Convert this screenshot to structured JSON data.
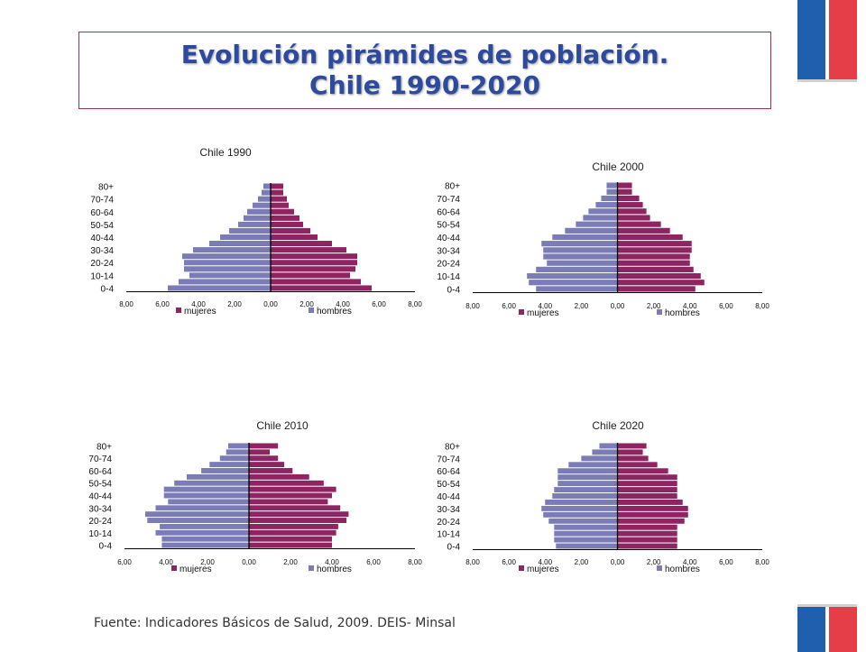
{
  "slide": {
    "title_line1": "Evolución pirámides de población.",
    "title_line2": "Chile 1990-2020",
    "source": "Fuente: Indicadores Básicos de Salud, 2009. DEIS- Minsal"
  },
  "colors": {
    "mujeres": "#7b7bb6",
    "hombres": "#8e2462",
    "title": "#2e4a9c",
    "frame": "#9b2f5b",
    "flag_blue": "#1f5fae",
    "flag_red": "#e63e48"
  },
  "chart_data": [
    {
      "type": "bar",
      "orientation": "horizontal-pyramid",
      "title": "Chile 1990",
      "categories": [
        "0-4",
        "5-9",
        "10-14",
        "15-19",
        "20-24",
        "25-29",
        "30-34",
        "35-39",
        "40-44",
        "45-49",
        "50-54",
        "55-59",
        "60-64",
        "65-69",
        "70-74",
        "75-79",
        "80+"
      ],
      "category_labels": [
        "0-4",
        "10-14",
        "20-24",
        "30-34",
        "40-44",
        "50-54",
        "60-64",
        "70-74",
        "80+"
      ],
      "xlim": [
        -8,
        8
      ],
      "x_ticks": [
        "8,00",
        "6,00",
        "4,00",
        "2,00",
        "0,00",
        "2,00",
        "4,00",
        "6,00",
        "8,00"
      ],
      "legend_position": "bottom",
      "series": [
        {
          "name": "mujeres",
          "values": [
            5.7,
            5.1,
            4.5,
            4.8,
            4.8,
            4.9,
            4.3,
            3.4,
            2.8,
            2.3,
            1.8,
            1.5,
            1.3,
            1.0,
            0.7,
            0.5,
            0.4
          ]
        },
        {
          "name": "hombres",
          "values": [
            5.6,
            5.0,
            4.4,
            4.7,
            4.8,
            4.8,
            4.2,
            3.4,
            2.6,
            2.2,
            1.8,
            1.6,
            1.3,
            1.0,
            0.9,
            0.7,
            0.7
          ]
        }
      ]
    },
    {
      "type": "bar",
      "orientation": "horizontal-pyramid",
      "title": "Chile 2000",
      "categories": [
        "0-4",
        "5-9",
        "10-14",
        "15-19",
        "20-24",
        "25-29",
        "30-34",
        "35-39",
        "40-44",
        "45-49",
        "50-54",
        "55-59",
        "60-64",
        "65-69",
        "70-74",
        "75-79",
        "80+"
      ],
      "category_labels": [
        "0-4",
        "10-14",
        "20-24",
        "30-34",
        "40-44",
        "50-54",
        "60-64",
        "70-74",
        "80+"
      ],
      "xlim": [
        -8,
        8
      ],
      "x_ticks": [
        "8,00",
        "6,00",
        "4,00",
        "2,00",
        "0,00",
        "2,00",
        "4,00",
        "6,00",
        "8,00"
      ],
      "legend_position": "bottom",
      "series": [
        {
          "name": "mujeres",
          "values": [
            4.5,
            4.9,
            5.0,
            4.5,
            3.9,
            4.1,
            4.1,
            4.2,
            3.6,
            2.9,
            2.3,
            1.9,
            1.6,
            1.2,
            0.9,
            0.6,
            0.6
          ]
        },
        {
          "name": "hombres",
          "values": [
            4.3,
            4.8,
            4.6,
            4.2,
            4.0,
            4.0,
            4.1,
            4.1,
            3.6,
            2.9,
            2.4,
            1.8,
            1.6,
            1.4,
            1.2,
            0.8,
            0.8
          ]
        }
      ]
    },
    {
      "type": "bar",
      "orientation": "horizontal-pyramid",
      "title": "Chile 2010",
      "categories": [
        "0-4",
        "5-9",
        "10-14",
        "15-19",
        "20-24",
        "25-29",
        "30-34",
        "35-39",
        "40-44",
        "45-49",
        "50-54",
        "55-59",
        "60-64",
        "65-69",
        "70-74",
        "75-79",
        "80+"
      ],
      "category_labels": [
        "0-4",
        "10-14",
        "20-24",
        "30-34",
        "40-44",
        "50-54",
        "60-64",
        "70-74",
        "80+"
      ],
      "xlim": [
        -6,
        8
      ],
      "x_ticks": [
        "6,00",
        "4,00",
        "2,00",
        "0,00",
        "2,00",
        "4,00",
        "6,00",
        "8,00"
      ],
      "legend_position": "bottom",
      "series": [
        {
          "name": "mujeres",
          "values": [
            4.2,
            4.2,
            4.5,
            4.3,
            4.9,
            5.0,
            4.5,
            3.9,
            4.1,
            4.1,
            3.6,
            3.0,
            2.3,
            1.9,
            1.4,
            1.1,
            1.0
          ]
        },
        {
          "name": "hombres",
          "values": [
            4.0,
            4.0,
            4.2,
            4.3,
            4.7,
            4.8,
            4.4,
            3.8,
            4.0,
            4.2,
            3.6,
            2.9,
            2.1,
            1.7,
            1.4,
            1.0,
            1.4
          ]
        }
      ]
    },
    {
      "type": "bar",
      "orientation": "horizontal-pyramid",
      "title": "Chile 2020",
      "categories": [
        "0-4",
        "5-9",
        "10-14",
        "15-19",
        "20-24",
        "25-29",
        "30-34",
        "35-39",
        "40-44",
        "45-49",
        "50-54",
        "55-59",
        "60-64",
        "65-69",
        "70-74",
        "75-79",
        "80+"
      ],
      "category_labels": [
        "0-4",
        "10-14",
        "20-24",
        "30-34",
        "40-44",
        "50-54",
        "60-64",
        "70-74",
        "80+"
      ],
      "xlim": [
        -8,
        8
      ],
      "x_ticks": [
        "8,00",
        "6,00",
        "4,00",
        "2,00",
        "0,00",
        "2,00",
        "4,00",
        "6,00",
        "8,00"
      ],
      "legend_position": "bottom",
      "series": [
        {
          "name": "mujeres",
          "values": [
            3.4,
            3.5,
            3.5,
            3.5,
            3.8,
            4.1,
            4.2,
            4.0,
            3.6,
            3.5,
            3.3,
            3.3,
            3.3,
            2.7,
            2.0,
            1.4,
            1.0
          ]
        },
        {
          "name": "hombres",
          "values": [
            3.3,
            3.3,
            3.3,
            3.3,
            3.7,
            3.9,
            3.9,
            3.6,
            3.3,
            3.3,
            3.3,
            3.3,
            2.8,
            2.2,
            1.7,
            1.4,
            1.6
          ]
        }
      ]
    }
  ]
}
